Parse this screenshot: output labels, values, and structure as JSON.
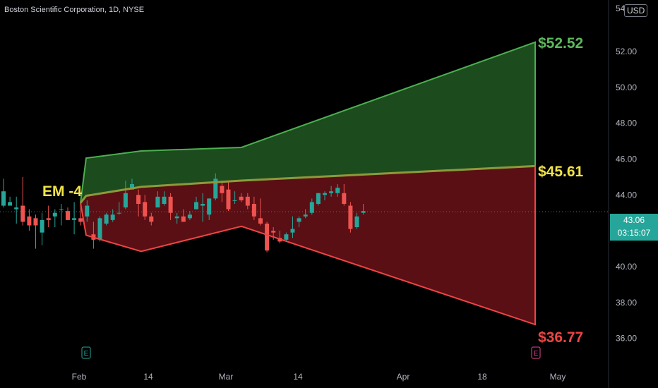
{
  "header": {
    "title": "Boston Scientific Corporation, 1D, NYSE"
  },
  "axis": {
    "currency": "USD"
  },
  "current_price": {
    "value": "43.06",
    "countdown": "03:15:07"
  },
  "chart_data": {
    "type": "candlestick",
    "y_ticks": [
      "36.00",
      "38.00",
      "40.00",
      "42.00",
      "44.00",
      "46.00",
      "48.00",
      "50.00",
      "52.00"
    ],
    "y_top_tick_partial": "54",
    "x_ticks": [
      "Feb",
      "14",
      "Mar",
      "14",
      "Apr",
      "18",
      "May"
    ],
    "ylim": [
      35.0,
      54.4
    ],
    "annotations": {
      "label": "EM -4",
      "upper": "$52.52",
      "middle": "$45.61",
      "lower": "$36.77"
    },
    "candles": [
      [
        43.4,
        44.2,
        43.3,
        44.9
      ],
      [
        43.4,
        43.6,
        43.4,
        43.9
      ],
      [
        43.2,
        43.3,
        42.4,
        43.9
      ],
      [
        43.4,
        42.5,
        42.3,
        45.0
      ],
      [
        42.8,
        42.3,
        42.0,
        43.2
      ],
      [
        42.7,
        42.3,
        41.0,
        42.9
      ],
      [
        41.9,
        42.6,
        41.2,
        43.0
      ],
      [
        42.7,
        42.6,
        42.2,
        43.4
      ],
      [
        42.8,
        43.0,
        42.2,
        43.2
      ],
      [
        43.2,
        43.2,
        42.3,
        43.5
      ],
      [
        43.1,
        42.6,
        42.6,
        43.3
      ],
      [
        42.6,
        42.7,
        41.8,
        43.6
      ],
      [
        42.7,
        42.5,
        42.3,
        43.7
      ],
      [
        42.8,
        43.4,
        42.5,
        43.7
      ],
      [
        41.8,
        41.5,
        41.0,
        42.5
      ],
      [
        41.5,
        42.7,
        41.4,
        42.8
      ],
      [
        42.4,
        42.9,
        42.3,
        43.0
      ],
      [
        42.6,
        42.9,
        42.5,
        43.2
      ],
      [
        43.0,
        43.0,
        42.9,
        43.6
      ],
      [
        43.3,
        44.1,
        43.2,
        44.8
      ],
      [
        44.3,
        44.6,
        44.3,
        44.9
      ],
      [
        44.0,
        43.5,
        42.8,
        44.3
      ],
      [
        43.6,
        42.8,
        42.6,
        44.0
      ],
      [
        42.8,
        42.5,
        42.3,
        43.0
      ],
      [
        43.3,
        43.9,
        43.3,
        44.2
      ],
      [
        43.5,
        43.9,
        43.4,
        44.2
      ],
      [
        43.9,
        43.0,
        42.6,
        44.1
      ],
      [
        42.7,
        42.8,
        42.4,
        43.0
      ],
      [
        42.8,
        42.5,
        42.5,
        43.2
      ],
      [
        42.7,
        42.9,
        42.6,
        43.1
      ],
      [
        43.2,
        43.6,
        43.2,
        43.9
      ],
      [
        43.4,
        43.5,
        42.5,
        44.1
      ],
      [
        42.9,
        43.8,
        42.6,
        43.8
      ],
      [
        43.8,
        44.9,
        43.7,
        45.2
      ],
      [
        44.5,
        44.1,
        43.6,
        44.8
      ],
      [
        44.3,
        43.2,
        43.1,
        44.7
      ],
      [
        43.7,
        43.7,
        43.5,
        44.2
      ],
      [
        43.9,
        43.7,
        43.6,
        44.1
      ],
      [
        43.9,
        43.4,
        43.2,
        44.1
      ],
      [
        43.5,
        42.8,
        42.6,
        43.9
      ],
      [
        42.7,
        42.4,
        42.3,
        43.8
      ],
      [
        42.4,
        40.9,
        40.8,
        42.5
      ],
      [
        42.0,
        41.9,
        41.5,
        42.2
      ],
      [
        41.6,
        41.4,
        41.3,
        42.0
      ],
      [
        41.5,
        41.8,
        41.4,
        41.9
      ],
      [
        41.9,
        42.1,
        41.6,
        42.8
      ],
      [
        42.5,
        42.7,
        42.2,
        42.8
      ],
      [
        42.8,
        42.9,
        42.7,
        43.2
      ],
      [
        43.0,
        43.6,
        42.9,
        43.8
      ],
      [
        43.5,
        44.1,
        43.4,
        44.1
      ],
      [
        44.0,
        44.1,
        43.7,
        44.2
      ],
      [
        44.1,
        44.2,
        43.9,
        44.5
      ],
      [
        44.1,
        44.4,
        43.9,
        44.6
      ],
      [
        44.1,
        43.5,
        43.4,
        44.6
      ],
      [
        43.4,
        42.1,
        41.9,
        43.6
      ],
      [
        42.2,
        42.8,
        42.1,
        43.0
      ],
      [
        43.0,
        43.1,
        42.9,
        43.5
      ]
    ]
  }
}
